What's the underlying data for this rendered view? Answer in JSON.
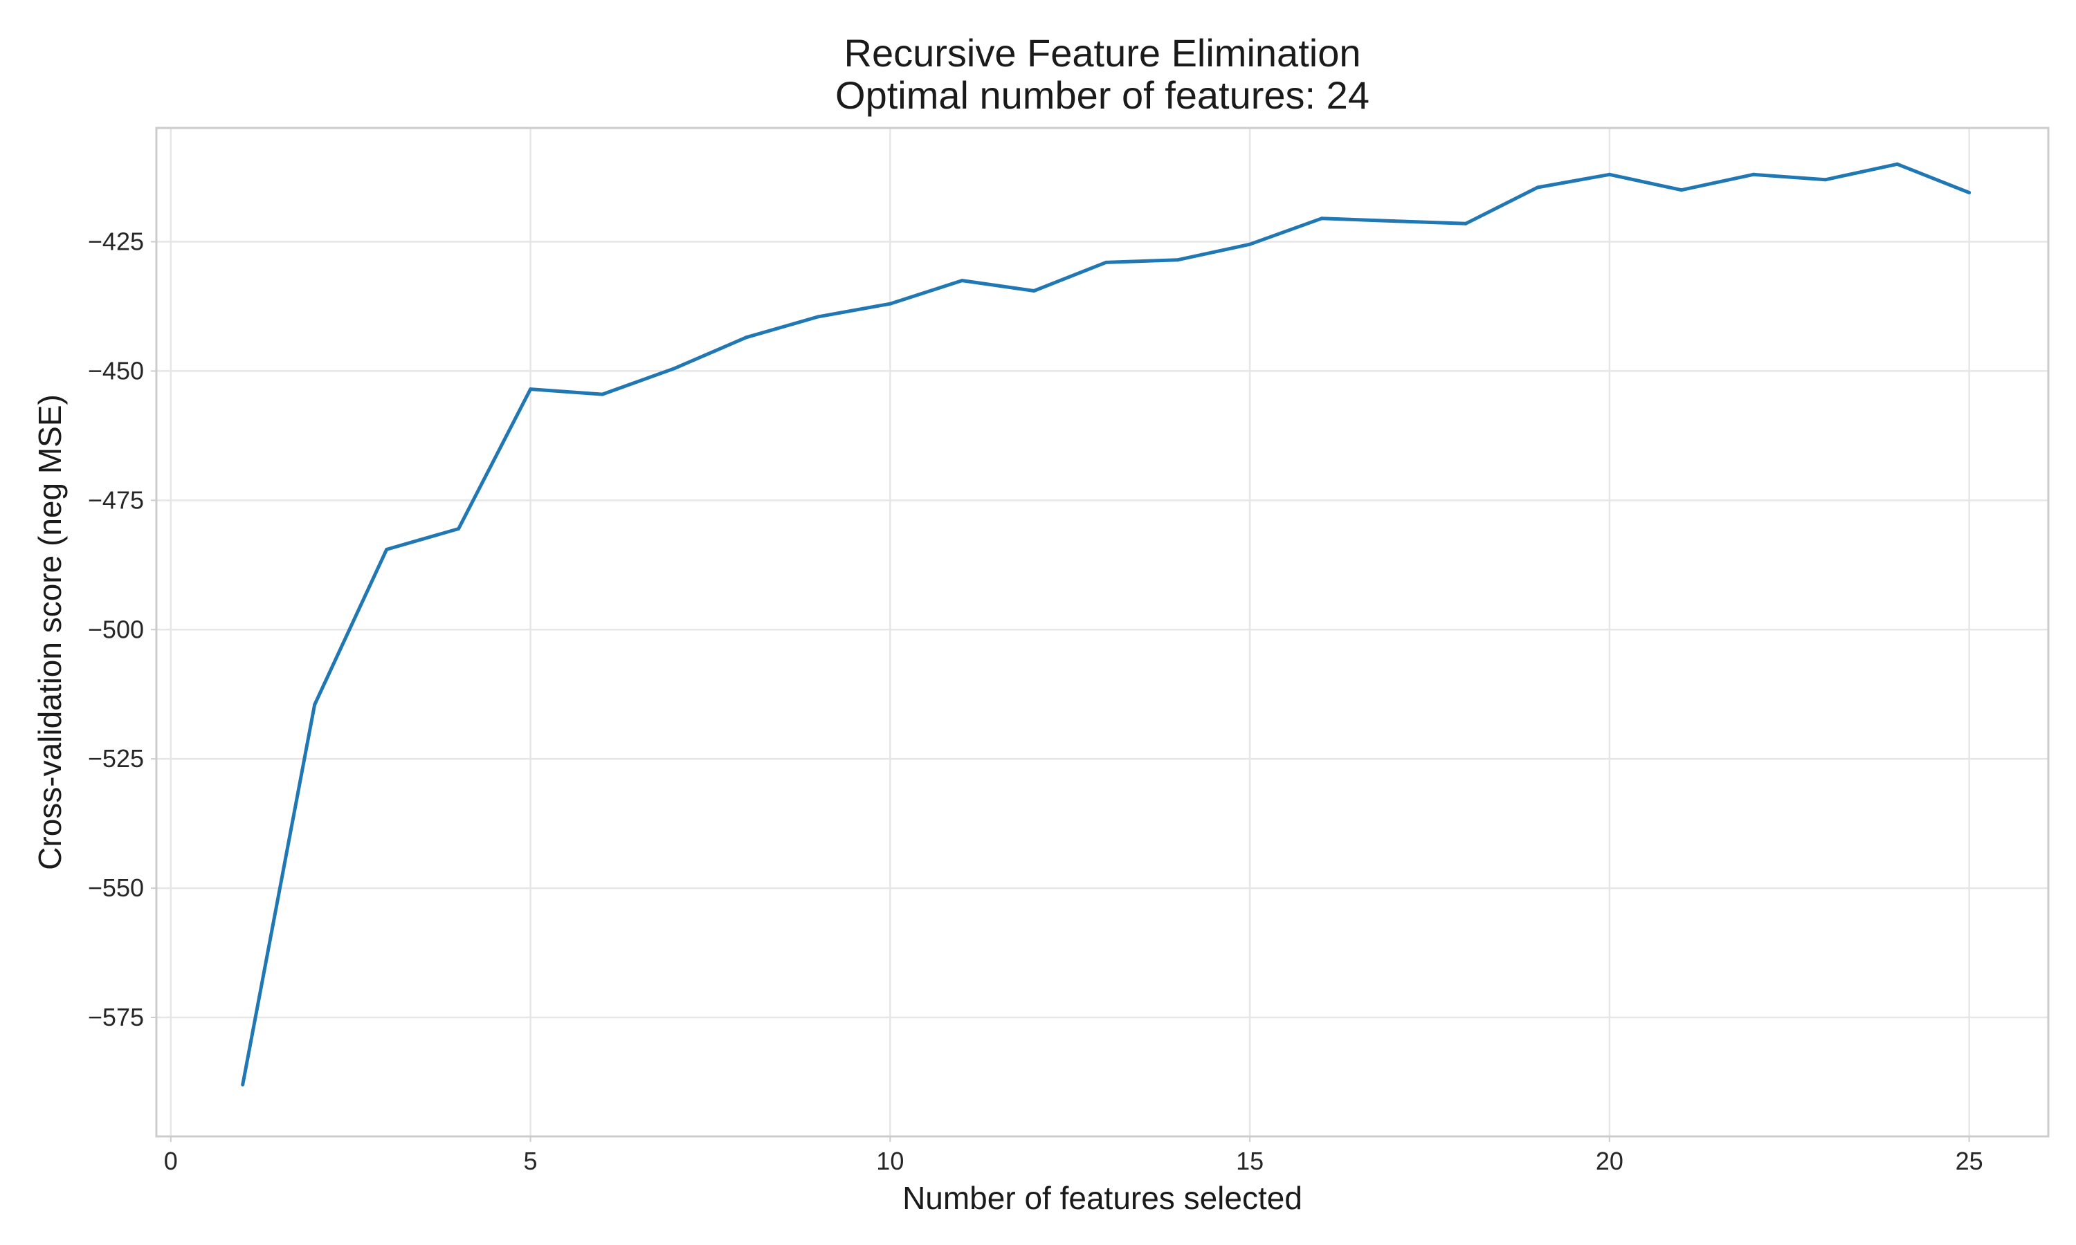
{
  "chart_data": {
    "type": "line",
    "title": "Recursive Feature Elimination",
    "subtitle": "Optimal number of features: 24",
    "xlabel": "Number of features selected",
    "ylabel": "Cross-validation score (neg MSE)",
    "xlim": [
      -0.2,
      26.1
    ],
    "ylim": [
      -598,
      -403
    ],
    "x_ticks": [
      0,
      5,
      10,
      15,
      20,
      25
    ],
    "x_tick_labels": [
      "0",
      "5",
      "10",
      "15",
      "20",
      "25"
    ],
    "y_ticks": [
      -425,
      -450,
      -475,
      -500,
      -525,
      -550,
      -575
    ],
    "y_tick_labels": [
      "−425",
      "−450",
      "−475",
      "−500",
      "−525",
      "−550",
      "−575"
    ],
    "grid": true,
    "series": [
      {
        "color": "#1f77b4",
        "x": [
          1,
          2,
          3,
          4,
          5,
          6,
          7,
          8,
          9,
          10,
          11,
          12,
          13,
          14,
          15,
          16,
          17,
          18,
          19,
          20,
          21,
          22,
          23,
          24,
          25
        ],
        "y": [
          -588,
          -514.5,
          -484.5,
          -480.5,
          -453.5,
          -454.5,
          -449.5,
          -443.5,
          -439.5,
          -437,
          -432.5,
          -434.5,
          -429,
          -428.5,
          -425.5,
          -420.5,
          -421,
          -421.5,
          -414.5,
          -412,
          -415,
          -412,
          -413,
          -410,
          -415.5
        ]
      }
    ]
  }
}
